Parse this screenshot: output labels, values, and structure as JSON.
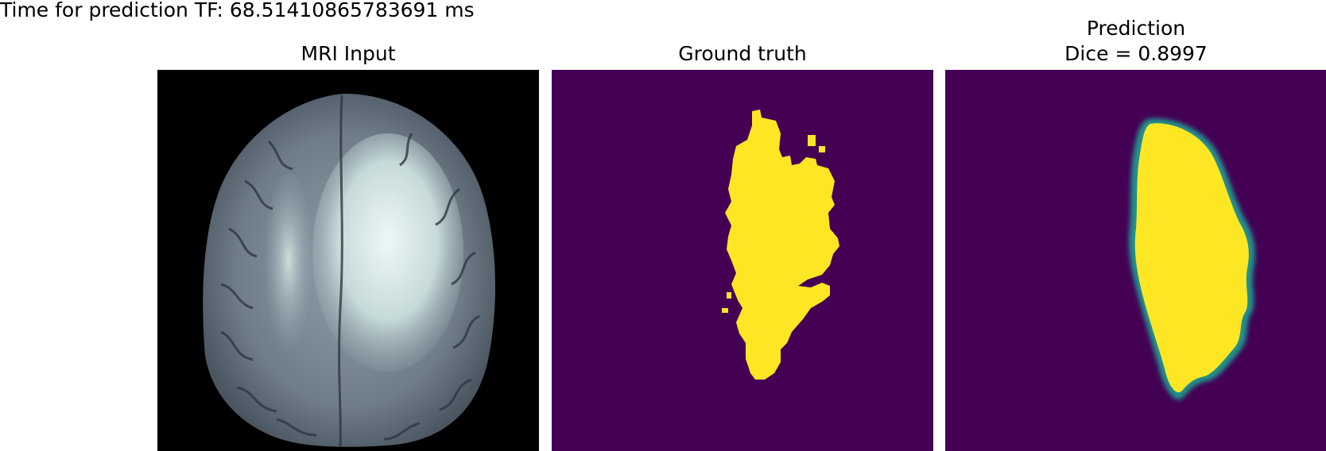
{
  "figure": {
    "suptitle": "Time for prediction TF: 68.51410865783691 ms",
    "panels": [
      {
        "title": "MRI Input",
        "subtitle": "",
        "image": "brain MRI axial slice (grayscale, bone colormap)"
      },
      {
        "title": "Ground truth",
        "subtitle": "",
        "image": "binary tumor mask (viridis colormap)"
      },
      {
        "title": "Prediction",
        "subtitle": "Dice = 0.8997",
        "image": "predicted tumor probability map (viridis colormap)"
      }
    ],
    "colors": {
      "mask_background": "#440154",
      "mask_foreground": "#fde725",
      "edge_green": "#21918c",
      "mri_background": "#000000"
    }
  }
}
